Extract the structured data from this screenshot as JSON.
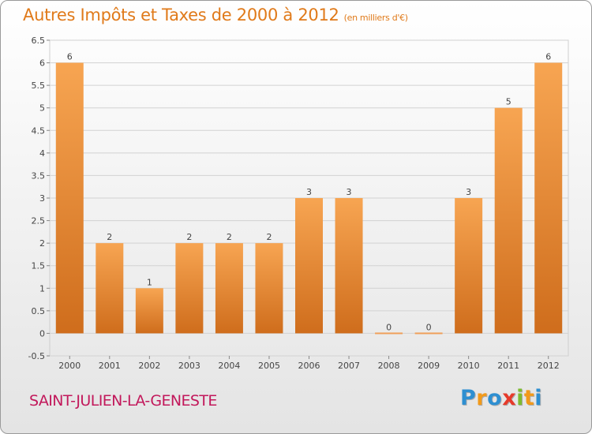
{
  "title": "Autres Impôts et Taxes de 2000 à 2012",
  "subtitle": "(en milliers d'€)",
  "commune": "SAINT-JULIEN-LA-GENESTE",
  "logo": {
    "letters": [
      "P",
      "r",
      "o",
      "x",
      "i",
      "t",
      "i"
    ],
    "colors": [
      "#2e8fd1",
      "#f29a1a",
      "#2e8fd1",
      "#e63a2a",
      "#7dbb2f",
      "#f29a1a",
      "#2e8fd1"
    ]
  },
  "chart_data": {
    "type": "bar",
    "title": "Autres Impôts et Taxes de 2000 à 2012",
    "subtitle": "(en milliers d'€)",
    "categories": [
      "2000",
      "2001",
      "2002",
      "2003",
      "2004",
      "2005",
      "2006",
      "2007",
      "2008",
      "2009",
      "2010",
      "2011",
      "2012"
    ],
    "values": [
      6,
      2,
      1,
      2,
      2,
      2,
      3,
      3,
      0,
      0,
      3,
      5,
      6
    ],
    "labels": [
      "6",
      "2",
      "1",
      "2",
      "2",
      "2",
      "3",
      "3",
      "0",
      "0",
      "3",
      "5",
      "6"
    ],
    "ylim": [
      -0.5,
      6.5
    ],
    "yticks": [
      "-0.5",
      "0",
      "0.5",
      "1",
      "1.5",
      "2",
      "2.5",
      "3",
      "3.5",
      "4",
      "4.5",
      "5",
      "5.5",
      "6",
      "6.5"
    ],
    "ytick_values": [
      -0.5,
      0,
      0.5,
      1,
      1.5,
      2,
      2.5,
      3,
      3.5,
      4,
      4.5,
      5,
      5.5,
      6,
      6.5
    ],
    "grid": true,
    "bar_color": "#f0923a"
  }
}
